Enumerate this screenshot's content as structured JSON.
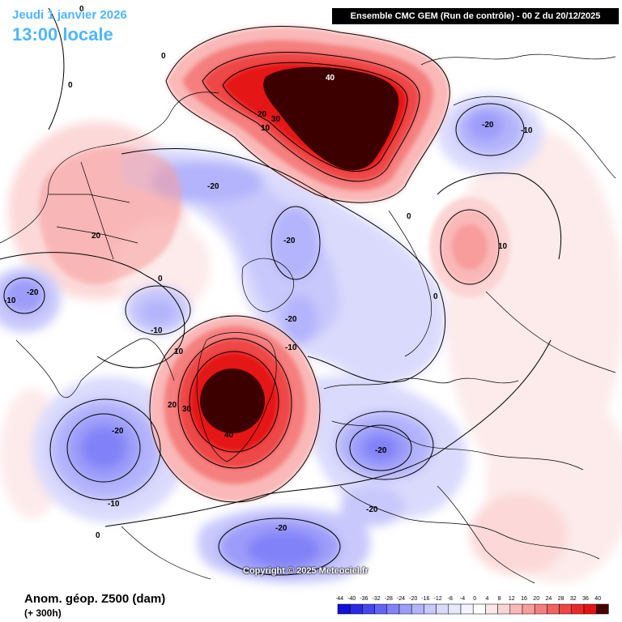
{
  "header": {
    "date": "Jeudi 1 janvier 2026",
    "time": "13:00 locale",
    "model": "Ensemble CMC GEM  (Run de contrôle)  -  00 Z du 20/12/2025"
  },
  "footer": {
    "title": "Anom. géop. Z500 (dam)",
    "subtitle": "(+ 300h)",
    "copyright": "Copyright © 2025 Meteociel.fr"
  },
  "legend": {
    "ticks": [
      "-44",
      "-40",
      "-36",
      "-32",
      "-28",
      "-24",
      "-20",
      "-16",
      "-12",
      "-8",
      "-4",
      "0",
      "4",
      "8",
      "12",
      "16",
      "20",
      "24",
      "28",
      "32",
      "36",
      "40"
    ],
    "colors": [
      "#1010d8",
      "#2a2ae4",
      "#4646ee",
      "#6464f4",
      "#8282f8",
      "#9c9cfa",
      "#b4b4fc",
      "#c8c8fc",
      "#dadafd",
      "#e8e8fe",
      "#f4f4ff",
      "#ffffff",
      "#fde8e8",
      "#fcd4d4",
      "#fab8b8",
      "#f89c9c",
      "#f57f7f",
      "#f26262",
      "#ee4646",
      "#ea2a2a",
      "#e51414",
      "#4a0000"
    ]
  },
  "contour_labels": {
    "pos_0": "0",
    "neg_10": "-10",
    "neg_20": "-20",
    "pos_10": "10",
    "pos_20": "20",
    "pos_30": "30",
    "pos_40": "40"
  }
}
